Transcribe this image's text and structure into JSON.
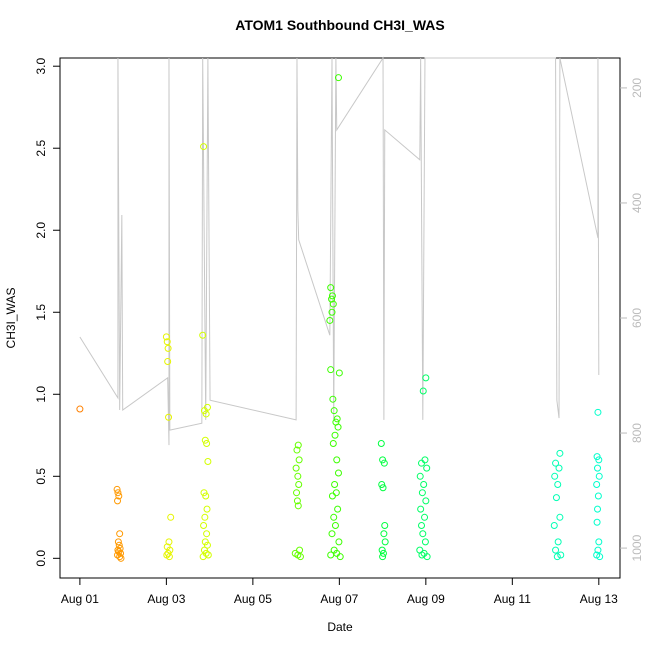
{
  "chart_data": {
    "type": "scatter",
    "title": "ATOM1 Southbound CH3I_WAS",
    "x_label": "Date",
    "y_label": "CH3I_WAS",
    "xlim": [
      0.54,
      13.49
    ],
    "ylim": [
      -0.12,
      3.05
    ],
    "y2lim": [
      1052,
      148
    ],
    "xticks": [
      {
        "value": 1,
        "label": "Aug 01"
      },
      {
        "value": 3,
        "label": "Aug 03"
      },
      {
        "value": 5,
        "label": "Aug 05"
      },
      {
        "value": 7,
        "label": "Aug 07"
      },
      {
        "value": 9,
        "label": "Aug 09"
      },
      {
        "value": 11,
        "label": "Aug 11"
      },
      {
        "value": 13,
        "label": "Aug 13"
      }
    ],
    "yticks": [
      {
        "value": 0,
        "label": "0.0"
      },
      {
        "value": 0.5,
        "label": "0.5"
      },
      {
        "value": 1,
        "label": "1.0"
      },
      {
        "value": 1.5,
        "label": "1.5"
      },
      {
        "value": 2,
        "label": "2.0"
      },
      {
        "value": 2.5,
        "label": "2.5"
      },
      {
        "value": 3,
        "label": "3.0"
      }
    ],
    "y2ticks": [
      200,
      400,
      600,
      800,
      1000
    ],
    "line": {
      "axis": "y2",
      "color": "#c8c8c8",
      "x": [
        1.0,
        1.88,
        1.88,
        1.92,
        1.97,
        1.99,
        3.03,
        3.06,
        3.06,
        3.08,
        3.82,
        3.84,
        3.91,
        3.96,
        4.01,
        6.0,
        6.02,
        6.04,
        6.06,
        6.78,
        6.83,
        6.87,
        6.92,
        6.94,
        8.01,
        8.03,
        8.05,
        8.86,
        8.88,
        8.93,
        8.98,
        9.42,
        12.0,
        12.03,
        12.08,
        12.1,
        12.98,
        12.98,
        13.0
      ],
      "values": [
        633,
        739,
        148,
        760,
        421,
        760,
        704,
        821,
        148,
        795,
        783,
        148,
        777,
        148,
        743,
        777,
        148,
        412,
        464,
        630,
        148,
        777,
        148,
        273,
        148,
        777,
        273,
        325,
        148,
        777,
        148,
        148,
        148,
        743,
        774,
        148,
        461,
        148,
        699
      ]
    },
    "series": [
      {
        "color": "#ff8000",
        "x": [
          1.0
        ],
        "values": [
          0.91
        ]
      },
      {
        "color": "#ff9900",
        "x": [
          1.86,
          1.88,
          1.9,
          1.87,
          1.92,
          1.89,
          1.91,
          1.93,
          1.88,
          1.9,
          1.94,
          1.87,
          1.92,
          1.95
        ],
        "values": [
          0.42,
          0.4,
          0.38,
          0.35,
          0.15,
          0.1,
          0.08,
          0.06,
          0.05,
          0.04,
          0.03,
          0.02,
          0.01,
          0.0
        ]
      },
      {
        "color": "#e6f500",
        "x": [
          3.0,
          3.02,
          3.04,
          3.03,
          3.05,
          3.1,
          3.06,
          3.02,
          3.08,
          3.04,
          3.01,
          3.07
        ],
        "values": [
          1.35,
          1.32,
          1.28,
          1.2,
          0.86,
          0.25,
          0.1,
          0.07,
          0.05,
          0.03,
          0.02,
          0.01
        ]
      },
      {
        "color": "#d4ff00",
        "x": [
          3.86,
          3.84,
          3.88,
          3.92,
          3.95,
          3.9,
          3.93,
          3.96,
          3.87,
          3.91,
          3.94,
          3.89,
          3.86,
          3.93,
          3.9,
          3.95,
          3.88,
          3.92,
          3.97,
          3.85
        ],
        "values": [
          2.51,
          1.36,
          0.9,
          0.88,
          0.92,
          0.72,
          0.7,
          0.59,
          0.4,
          0.38,
          0.3,
          0.25,
          0.2,
          0.15,
          0.1,
          0.08,
          0.05,
          0.03,
          0.02,
          0.01
        ]
      },
      {
        "color": "#66ff00",
        "x": [
          6.05,
          6.02,
          6.07,
          6.0,
          6.04,
          6.06,
          6.01,
          6.03,
          6.05,
          6.08,
          5.98,
          6.04,
          6.1
        ],
        "values": [
          0.69,
          0.66,
          0.6,
          0.55,
          0.5,
          0.45,
          0.4,
          0.35,
          0.32,
          0.05,
          0.03,
          0.02,
          0.01
        ]
      },
      {
        "color": "#3cff00",
        "x": [
          6.98,
          6.8,
          6.84,
          6.82,
          6.86,
          6.83,
          6.78,
          6.8,
          7.0,
          6.85,
          6.88,
          6.95,
          6.92,
          6.97,
          6.9,
          6.86,
          6.94,
          6.98,
          6.89,
          6.93,
          6.84,
          6.96,
          6.87,
          6.91,
          6.83,
          6.99,
          6.88,
          6.94,
          6.8,
          7.02
        ],
        "values": [
          2.93,
          1.65,
          1.6,
          1.58,
          1.55,
          1.5,
          1.45,
          1.15,
          1.13,
          0.97,
          0.9,
          0.85,
          0.83,
          0.8,
          0.75,
          0.7,
          0.6,
          0.52,
          0.45,
          0.4,
          0.38,
          0.3,
          0.25,
          0.2,
          0.15,
          0.1,
          0.05,
          0.03,
          0.02,
          0.01
        ]
      },
      {
        "color": "#00ff40",
        "x": [
          7.97,
          8.0,
          8.04,
          7.98,
          8.01,
          8.05,
          8.03,
          8.06,
          7.99,
          8.02,
          8.0
        ],
        "values": [
          0.7,
          0.6,
          0.58,
          0.45,
          0.43,
          0.2,
          0.15,
          0.1,
          0.05,
          0.03,
          0.01
        ]
      },
      {
        "color": "#00ff66",
        "x": [
          9.0,
          8.94,
          8.98,
          8.9,
          9.02,
          8.87,
          8.95,
          8.92,
          9.0,
          8.88,
          8.97,
          8.9,
          8.93,
          8.99,
          8.86,
          8.96,
          8.91,
          9.03
        ],
        "values": [
          1.1,
          1.02,
          0.6,
          0.58,
          0.55,
          0.5,
          0.45,
          0.4,
          0.35,
          0.3,
          0.25,
          0.2,
          0.15,
          0.1,
          0.05,
          0.03,
          0.02,
          0.01
        ]
      },
      {
        "color": "#00ffb4",
        "x": [
          12.1,
          12.0,
          12.08,
          11.98,
          12.05,
          12.02,
          12.1,
          11.97,
          12.06,
          12.0,
          12.12,
          12.04
        ],
        "values": [
          0.64,
          0.58,
          0.55,
          0.5,
          0.45,
          0.37,
          0.25,
          0.2,
          0.1,
          0.05,
          0.02,
          0.01
        ]
      },
      {
        "color": "#00ffcc",
        "x": [
          12.98,
          12.96,
          13.0,
          12.97,
          13.01,
          12.95,
          12.99,
          12.97,
          12.96,
          13.0,
          12.98,
          12.95,
          13.02
        ],
        "values": [
          0.89,
          0.62,
          0.6,
          0.55,
          0.5,
          0.45,
          0.38,
          0.3,
          0.22,
          0.1,
          0.05,
          0.02,
          0.01
        ]
      }
    ]
  }
}
